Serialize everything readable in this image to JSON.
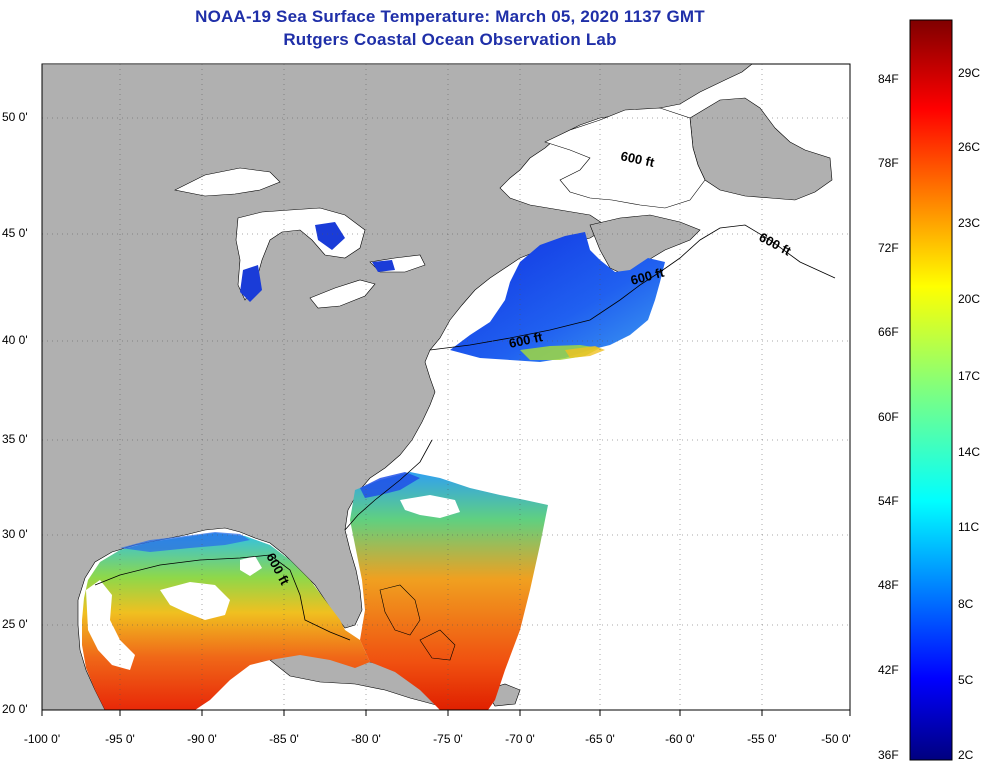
{
  "title": {
    "line1": "NOAA-19 Sea Surface Temperature:  March 05, 2020 1137 GMT",
    "line2": "Rutgers Coastal Ocean Observation Lab"
  },
  "axes": {
    "lat_labels": [
      "50 0'",
      "45 0'",
      "40 0'",
      "35 0'",
      "30 0'",
      "25 0'",
      "20 0'"
    ],
    "lon_labels": [
      "-100 0'",
      "-95 0'",
      "-90 0'",
      "-85 0'",
      "-80 0'",
      "-75 0'",
      "-70 0'",
      "-65 0'",
      "-60 0'",
      "-55 0'",
      "-50 0'"
    ],
    "lon_range": [
      -100,
      -50
    ],
    "lat_range": [
      20,
      52
    ]
  },
  "contour_labels": [
    "600 ft",
    "600 ft",
    "600 ft",
    "600 ft",
    "600 ft"
  ],
  "colorbar": {
    "fahrenheit": [
      "84F",
      "78F",
      "72F",
      "66F",
      "60F",
      "54F",
      "48F",
      "42F",
      "36F"
    ],
    "celsius": [
      "29C",
      "26C",
      "23C",
      "20C",
      "17C",
      "14C",
      "11C",
      "8C",
      "5C",
      "2C"
    ],
    "range_f": [
      36,
      88
    ]
  },
  "colors": {
    "land": "#b0b0b0",
    "title": "#1f2fa8",
    "cold": "#0000a0",
    "warm": "#e02000"
  }
}
